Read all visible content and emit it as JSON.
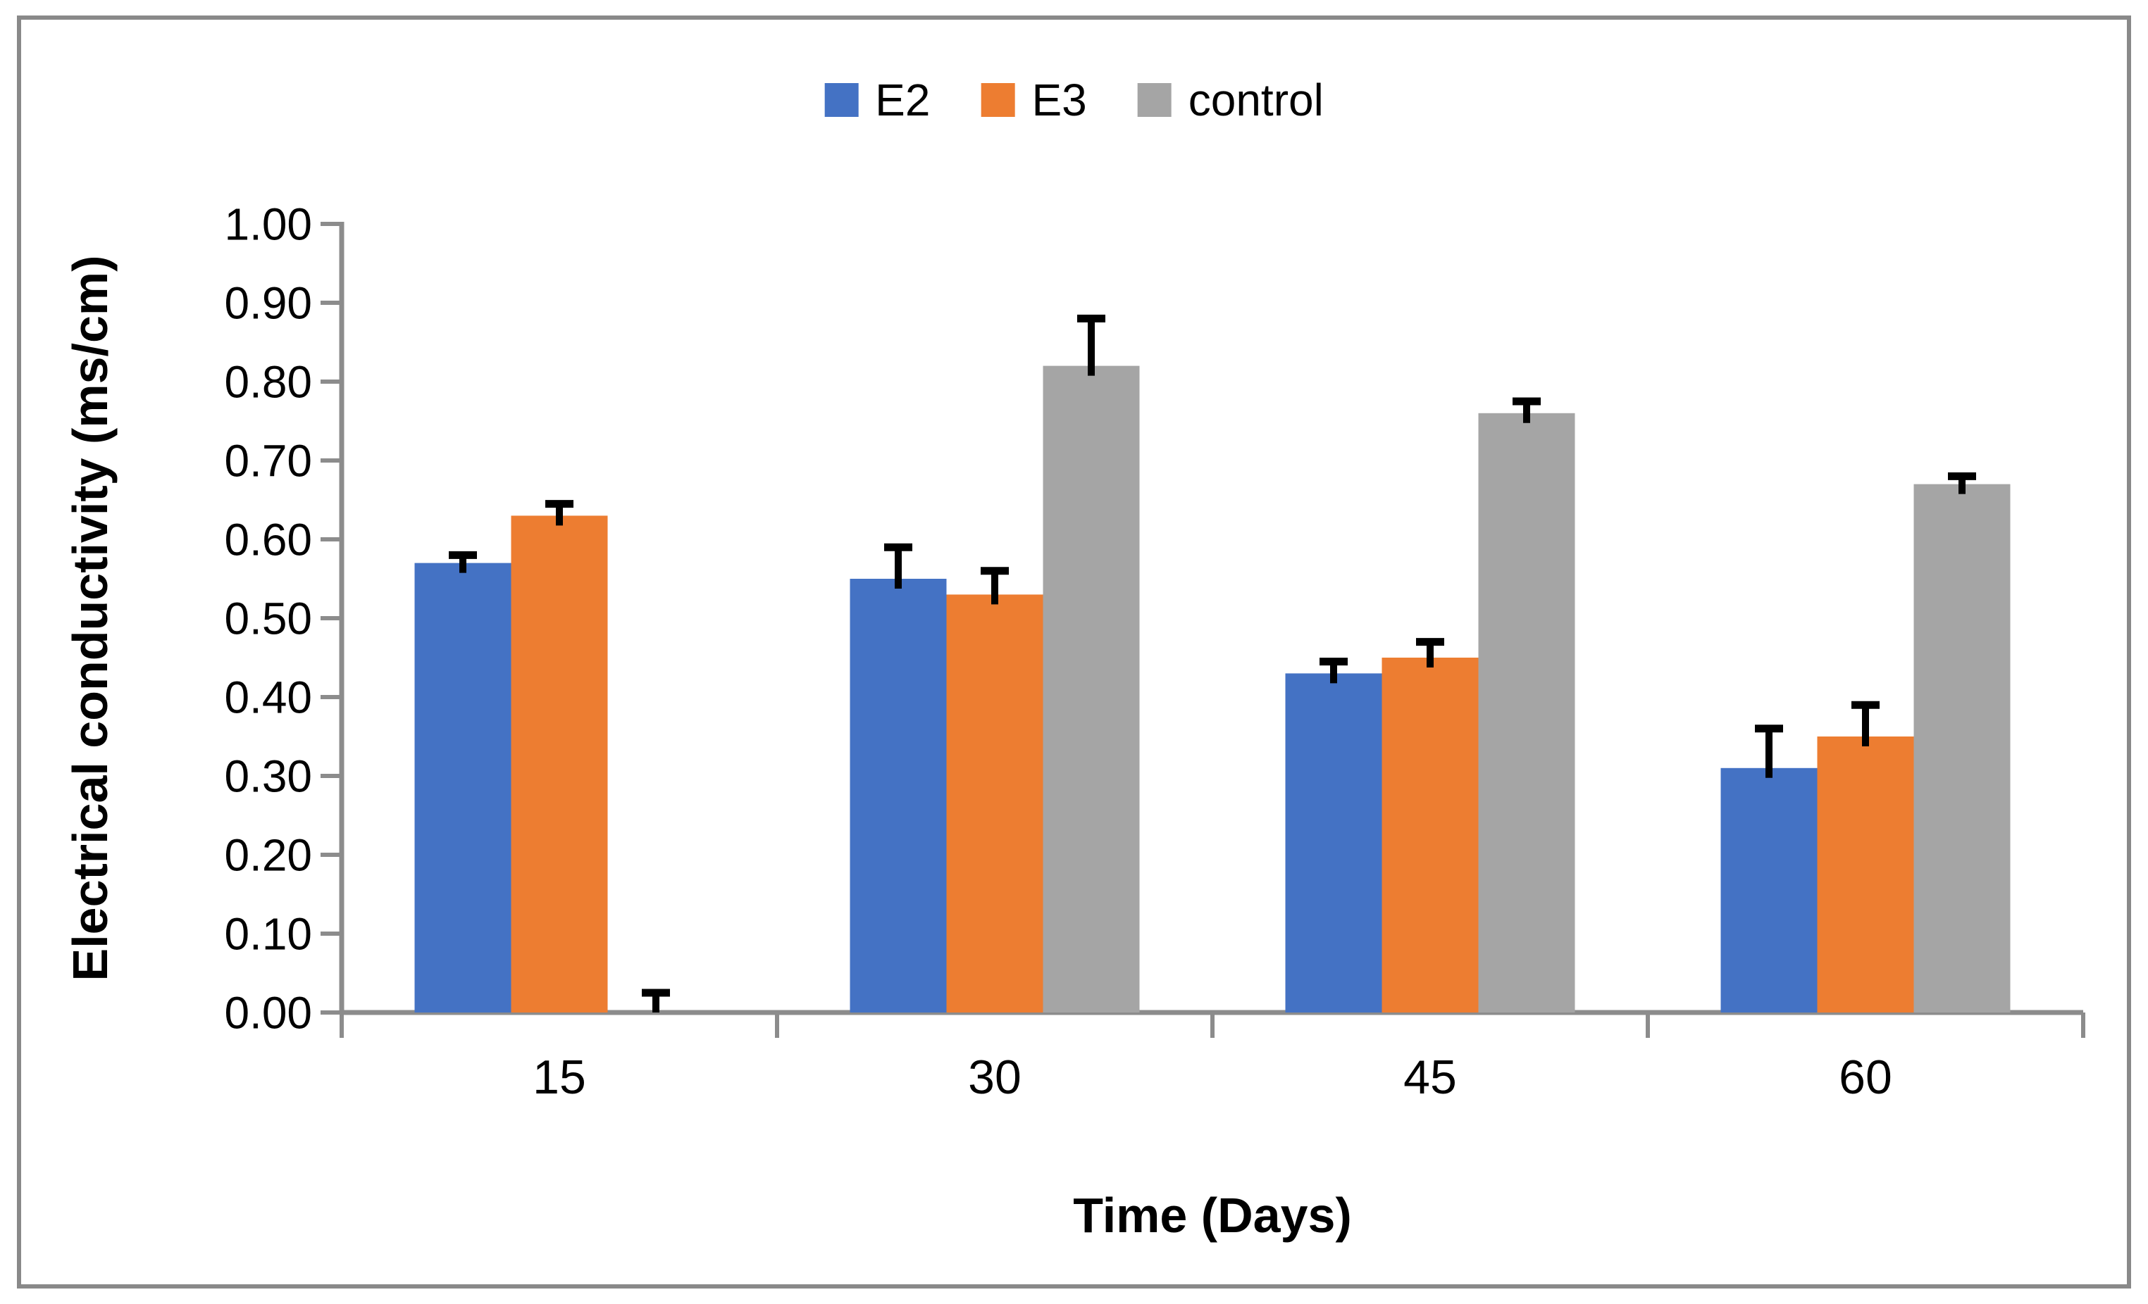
{
  "frame": {
    "border_color": "#898989"
  },
  "axis_color": "#8C8C8C",
  "error_bar_color": "#000000",
  "legend": {
    "items": [
      {
        "label": "E2",
        "color": "#4472C4"
      },
      {
        "label": "E3",
        "color": "#ED7D31"
      },
      {
        "label": "control",
        "color": "#A5A5A5"
      }
    ]
  },
  "y_axis": {
    "title": "Electrical conductivity (ms/cm)",
    "min": 0.0,
    "max": 1.0,
    "step": 0.1,
    "tick_labels": [
      "0.00",
      "0.10",
      "0.20",
      "0.30",
      "0.40",
      "0.50",
      "0.60",
      "0.70",
      "0.80",
      "0.90",
      "1.00"
    ]
  },
  "x_axis": {
    "title": "Time (Days)",
    "categories": [
      "15",
      "30",
      "45",
      "60"
    ]
  },
  "chart_data": {
    "type": "bar",
    "title": "",
    "xlabel": "Time (Days)",
    "ylabel": "Electrical conductivity (ms/cm)",
    "categories": [
      "15",
      "30",
      "45",
      "60"
    ],
    "series": [
      {
        "name": "E2",
        "color": "#4472C4",
        "values": [
          0.57,
          0.55,
          0.43,
          0.31
        ],
        "errors_plus": [
          0.01,
          0.04,
          0.015,
          0.05
        ]
      },
      {
        "name": "E3",
        "color": "#ED7D31",
        "values": [
          0.63,
          0.53,
          0.45,
          0.35
        ],
        "errors_plus": [
          0.015,
          0.03,
          0.02,
          0.04
        ]
      },
      {
        "name": "control",
        "color": "#A5A5A5",
        "values": [
          0.0,
          0.82,
          0.76,
          0.67
        ],
        "errors_plus": [
          0.025,
          0.06,
          0.015,
          0.01
        ]
      }
    ],
    "ylim": [
      0.0,
      1.0
    ],
    "ytick_step": 0.1,
    "error_bars": "plus-only",
    "grid": false,
    "legend_position": "top-center"
  }
}
